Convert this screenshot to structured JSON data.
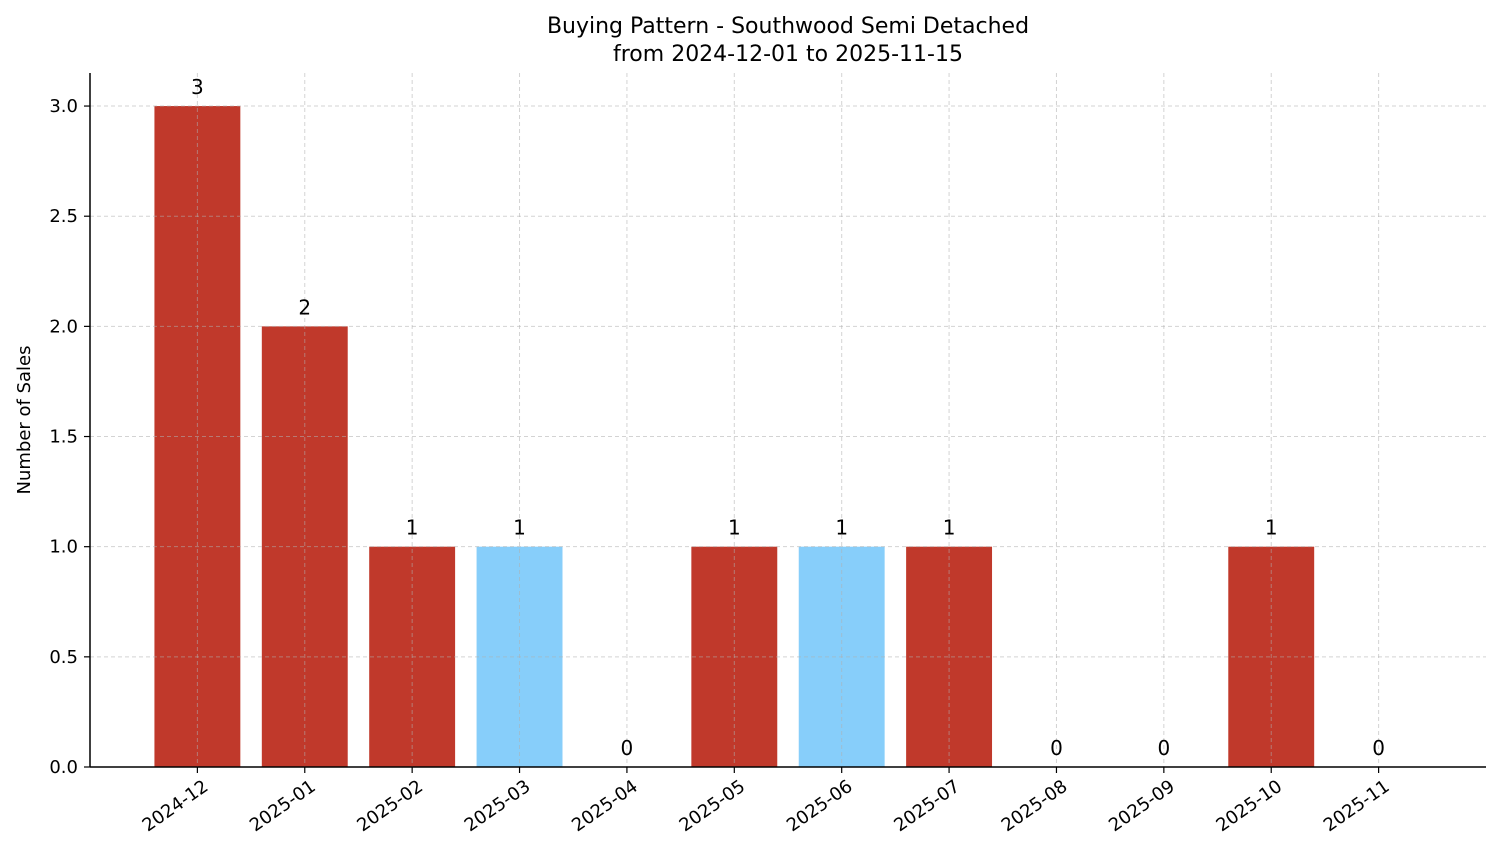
{
  "chart_data": {
    "type": "bar",
    "title": "Buying Pattern - Southwood Semi Detached",
    "subtitle": "from 2024-12-01 to 2025-11-15",
    "xlabel": "",
    "ylabel": "Number of Sales",
    "categories": [
      "2024-12",
      "2025-01",
      "2025-02",
      "2025-03",
      "2025-04",
      "2025-05",
      "2025-06",
      "2025-07",
      "2025-08",
      "2025-09",
      "2025-10",
      "2025-11"
    ],
    "values": [
      3,
      2,
      1,
      1,
      0,
      1,
      1,
      1,
      0,
      0,
      1,
      0
    ],
    "bar_colors": [
      "#c0392b",
      "#c0392b",
      "#c0392b",
      "#87cefa",
      "#c0392b",
      "#c0392b",
      "#87cefa",
      "#c0392b",
      "#c0392b",
      "#c0392b",
      "#c0392b",
      "#c0392b"
    ],
    "data_labels": [
      "3",
      "2",
      "1",
      "1",
      "0",
      "1",
      "1",
      "1",
      "0",
      "0",
      "1",
      "0"
    ],
    "ylim": [
      0,
      3.15
    ],
    "yticks": [
      "0.0",
      "0.5",
      "1.0",
      "1.5",
      "2.0",
      "2.5",
      "3.0"
    ],
    "grid": true,
    "legend": "none"
  }
}
